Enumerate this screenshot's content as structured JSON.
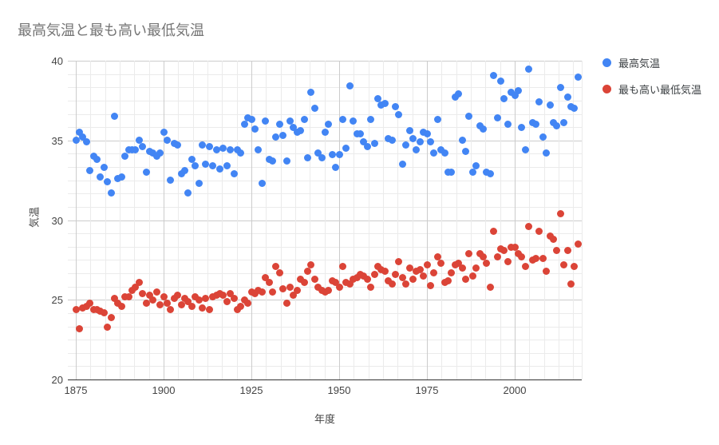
{
  "title": "最高気温と最も高い最低気温",
  "legend": {
    "items": [
      {
        "label": "最高気温",
        "color": "#4285F4"
      },
      {
        "label": "最も高い最低気温",
        "color": "#DB4437"
      }
    ]
  },
  "chart_data": {
    "type": "scatter",
    "title": "最高気温と最も高い最低気温",
    "xlabel": "年度",
    "ylabel": "気温",
    "legend_position": "right",
    "grid": true,
    "background": "#ffffff",
    "x_ticks": [
      1875,
      1900,
      1925,
      1950,
      1975,
      2000
    ],
    "y_ticks": [
      20,
      25,
      30,
      35,
      40
    ],
    "x_range": [
      1872.73,
      2019.09
    ],
    "y_range": [
      20,
      40
    ],
    "x": [
      1875,
      1876,
      1877,
      1878,
      1879,
      1880,
      1881,
      1882,
      1883,
      1884,
      1885,
      1886,
      1887,
      1888,
      1889,
      1890,
      1891,
      1892,
      1893,
      1894,
      1895,
      1896,
      1897,
      1898,
      1899,
      1900,
      1901,
      1902,
      1903,
      1904,
      1905,
      1906,
      1907,
      1908,
      1909,
      1910,
      1911,
      1912,
      1913,
      1914,
      1915,
      1916,
      1917,
      1918,
      1919,
      1920,
      1921,
      1922,
      1923,
      1924,
      1925,
      1926,
      1927,
      1928,
      1929,
      1930,
      1931,
      1932,
      1933,
      1934,
      1935,
      1936,
      1937,
      1938,
      1939,
      1940,
      1941,
      1942,
      1943,
      1944,
      1945,
      1946,
      1947,
      1948,
      1949,
      1950,
      1951,
      1952,
      1953,
      1954,
      1955,
      1956,
      1957,
      1958,
      1959,
      1960,
      1961,
      1962,
      1963,
      1964,
      1965,
      1966,
      1967,
      1968,
      1969,
      1970,
      1971,
      1972,
      1973,
      1974,
      1975,
      1976,
      1977,
      1978,
      1979,
      1980,
      1981,
      1982,
      1983,
      1984,
      1985,
      1986,
      1987,
      1988,
      1989,
      1990,
      1991,
      1992,
      1993,
      1994,
      1995,
      1996,
      1997,
      1998,
      1999,
      2000,
      2001,
      2002,
      2003,
      2004,
      2005,
      2006,
      2007,
      2008,
      2009,
      2010,
      2011,
      2012,
      2013,
      2014,
      2015,
      2016,
      2017,
      2018
    ],
    "series": [
      {
        "name": "最高気温",
        "color": "#4285F4",
        "values": [
          35.0,
          35.5,
          35.2,
          34.9,
          33.1,
          34.0,
          33.8,
          32.7,
          33.3,
          32.4,
          31.7,
          36.5,
          32.6,
          32.7,
          34.0,
          34.4,
          34.4,
          34.4,
          35.0,
          34.6,
          33.0,
          34.3,
          34.2,
          34.0,
          34.2,
          35.5,
          35.0,
          32.5,
          34.8,
          34.7,
          32.9,
          33.1,
          31.7,
          33.8,
          33.4,
          32.3,
          34.7,
          33.5,
          34.6,
          33.4,
          34.4,
          33.2,
          34.5,
          33.4,
          34.4,
          32.9,
          34.4,
          34.2,
          36.0,
          36.4,
          36.3,
          35.7,
          34.4,
          32.3,
          36.2,
          33.8,
          33.7,
          35.2,
          36.0,
          35.3,
          33.7,
          36.2,
          35.8,
          35.5,
          35.6,
          36.3,
          33.9,
          38.0,
          37.0,
          34.2,
          33.9,
          35.5,
          36.0,
          34.1,
          33.3,
          34.1,
          36.3,
          34.5,
          38.4,
          36.2,
          35.4,
          35.4,
          34.9,
          34.6,
          36.3,
          34.8,
          37.6,
          37.2,
          37.3,
          35.1,
          35.0,
          37.1,
          36.6,
          33.5,
          34.7,
          35.6,
          35.1,
          34.4,
          34.9,
          35.5,
          35.4,
          34.9,
          34.2,
          36.3,
          34.4,
          34.2,
          33.0,
          33.0,
          37.7,
          37.9,
          35.0,
          34.3,
          36.5,
          33.0,
          33.4,
          35.9,
          35.7,
          33.0,
          32.9,
          39.1,
          36.4,
          38.7,
          37.6,
          36.0,
          38.0,
          37.8,
          38.1,
          35.8,
          34.4,
          39.5,
          36.1,
          36.0,
          37.4,
          35.2,
          34.2,
          37.2,
          36.1,
          35.9,
          38.3,
          36.1,
          37.7,
          37.1,
          37.0,
          39.0
        ]
      },
      {
        "name": "最も高い最低気温",
        "color": "#DB4437",
        "values": [
          24.4,
          23.2,
          24.5,
          24.6,
          24.8,
          24.4,
          24.4,
          24.3,
          24.2,
          23.3,
          23.9,
          25.1,
          24.8,
          24.6,
          25.2,
          25.2,
          25.6,
          25.8,
          26.1,
          25.4,
          24.8,
          25.3,
          25.0,
          25.5,
          24.7,
          25.2,
          24.8,
          24.4,
          25.1,
          25.3,
          24.7,
          25.1,
          24.9,
          24.6,
          25.2,
          25.0,
          24.5,
          25.1,
          24.4,
          25.2,
          25.3,
          25.4,
          25.3,
          24.9,
          25.4,
          25.1,
          24.4,
          24.6,
          25.0,
          24.8,
          25.5,
          25.4,
          25.6,
          25.5,
          26.4,
          26.1,
          25.5,
          27.1,
          26.7,
          25.7,
          24.8,
          25.8,
          25.3,
          25.6,
          26.3,
          26.1,
          26.8,
          27.2,
          26.3,
          25.8,
          25.6,
          25.5,
          25.6,
          26.2,
          26.1,
          25.8,
          27.1,
          26.1,
          26.0,
          26.3,
          26.4,
          26.6,
          26.5,
          26.3,
          25.8,
          26.6,
          27.1,
          26.9,
          26.8,
          26.2,
          26.0,
          26.6,
          27.4,
          26.4,
          26.0,
          27.0,
          26.3,
          26.8,
          26.9,
          26.5,
          27.2,
          25.9,
          26.7,
          27.7,
          27.3,
          26.1,
          26.2,
          26.7,
          27.2,
          27.3,
          27.0,
          26.3,
          27.9,
          26.5,
          27.0,
          27.9,
          27.7,
          27.3,
          25.8,
          29.3,
          27.7,
          28.2,
          28.1,
          27.4,
          28.3,
          28.3,
          27.9,
          27.7,
          27.1,
          29.6,
          27.5,
          27.6,
          29.3,
          27.6,
          26.8,
          29.0,
          28.8,
          28.1,
          30.4,
          27.2,
          28.1,
          26.0,
          27.1,
          28.5
        ]
      }
    ]
  }
}
